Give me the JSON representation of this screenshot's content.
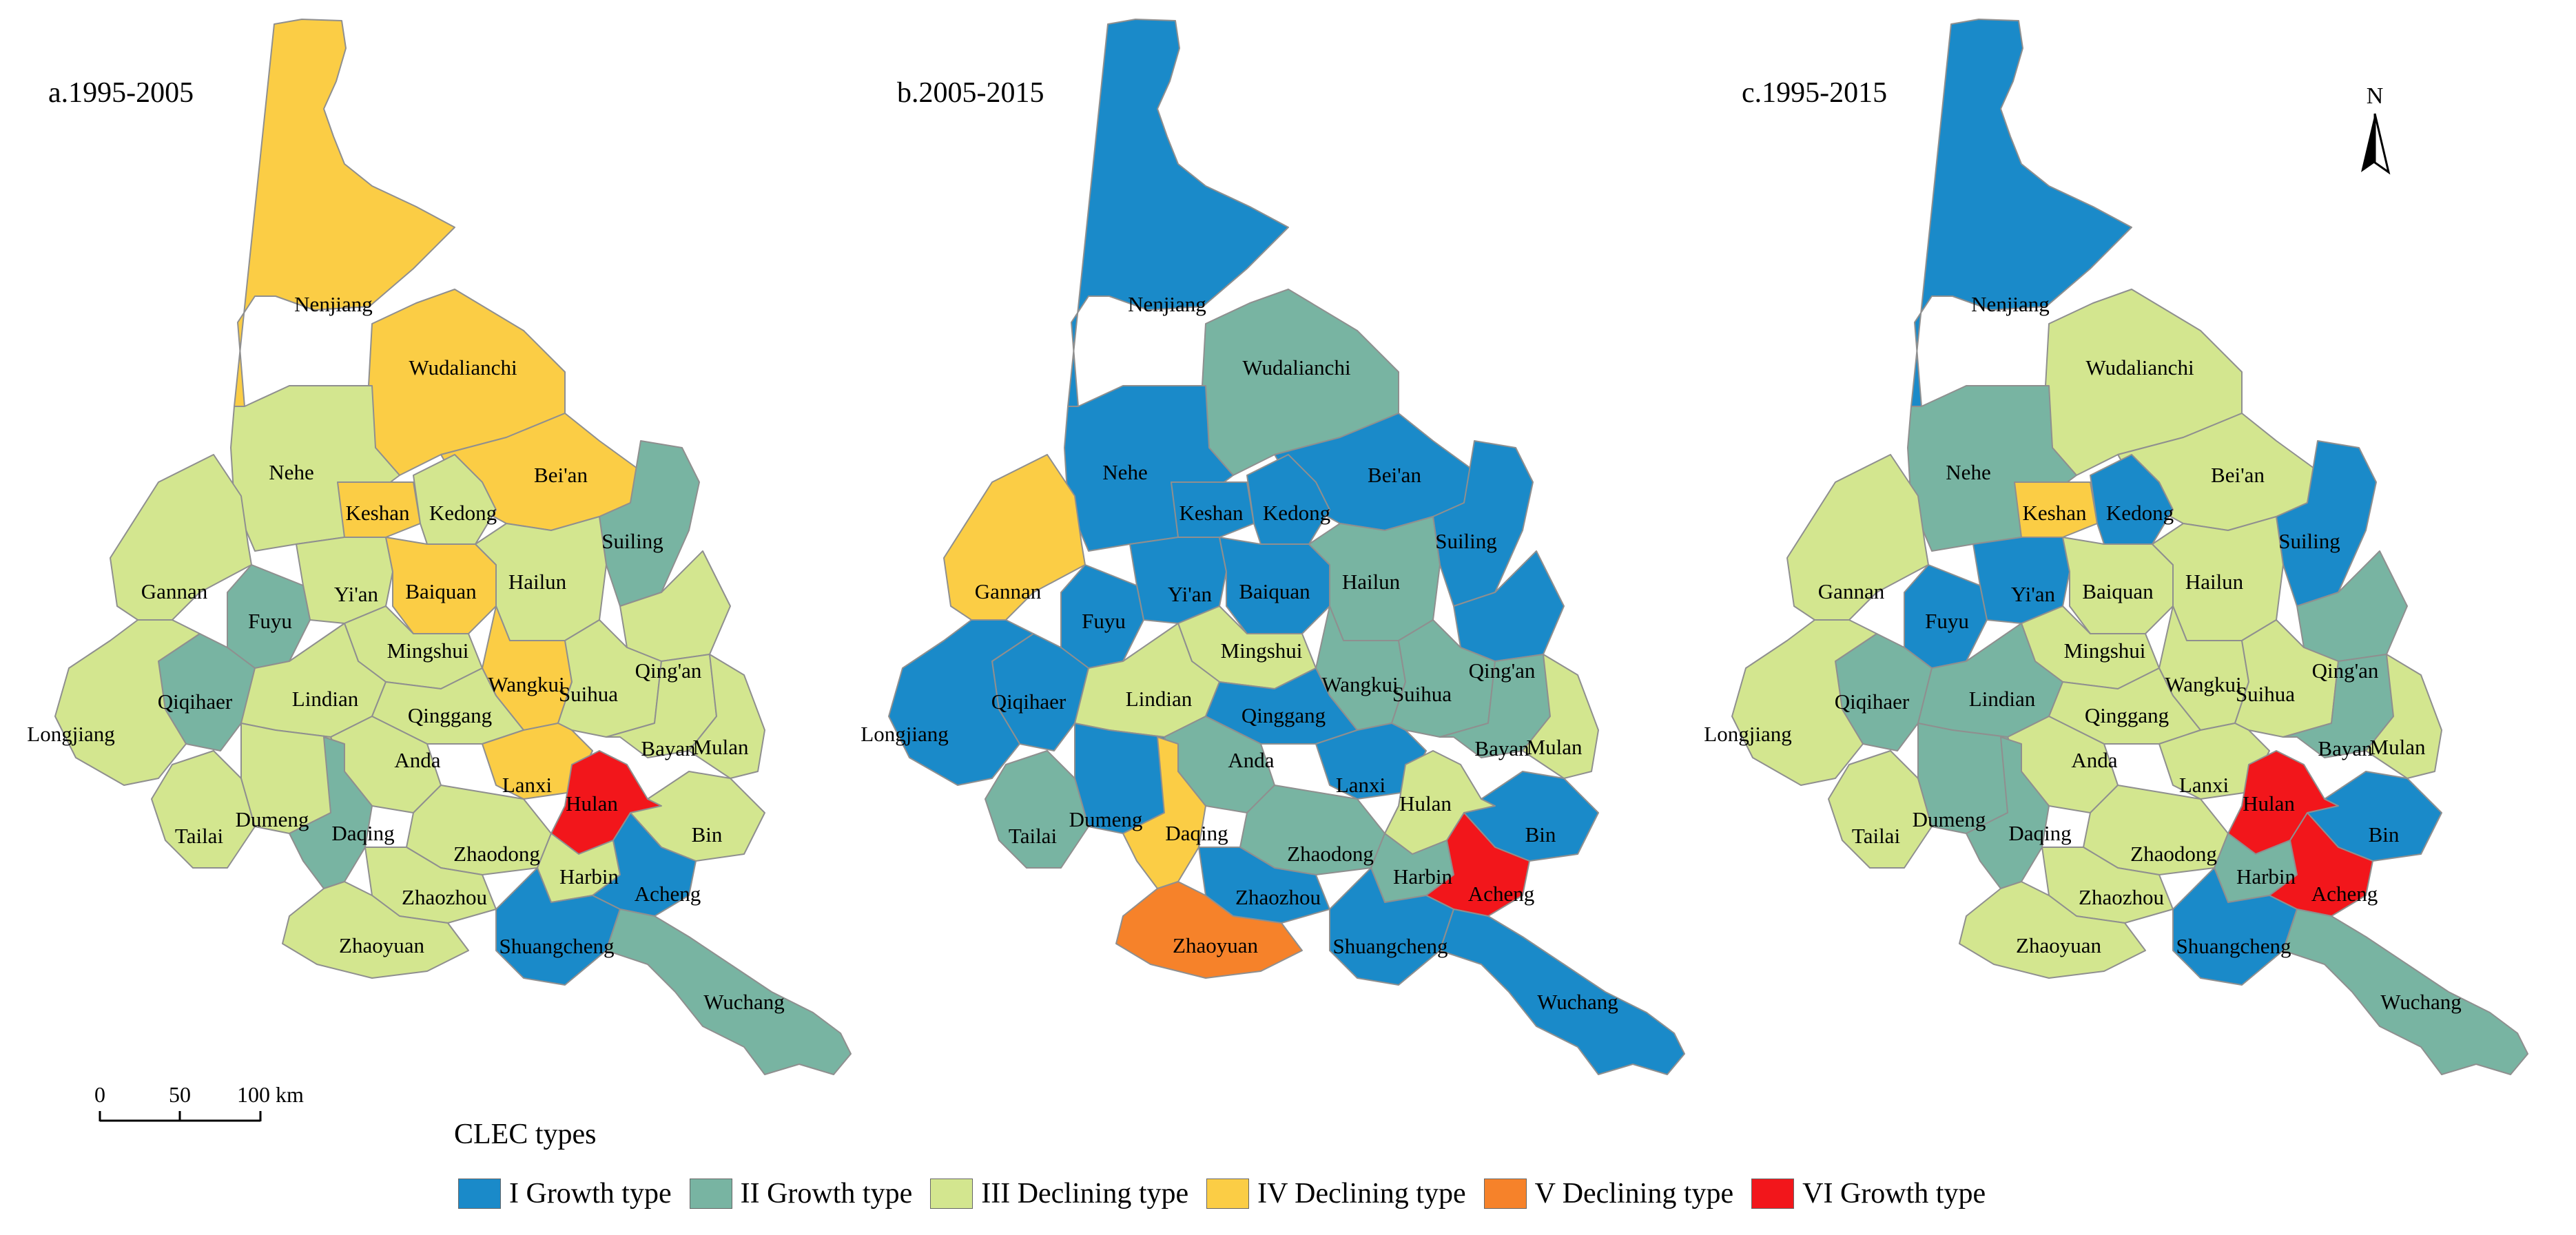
{
  "legend": {
    "title": "CLEC types",
    "items": [
      {
        "key": "I",
        "label": "I Growth type",
        "color": "#1a8ac9"
      },
      {
        "key": "II",
        "label": "II Growth type",
        "color": "#78b4a2"
      },
      {
        "key": "III",
        "label": "III Declining type",
        "color": "#d3e68f"
      },
      {
        "key": "IV",
        "label": "IV Declining type",
        "color": "#fbcd45"
      },
      {
        "key": "V",
        "label": "V Declining type",
        "color": "#f6822a"
      },
      {
        "key": "VI",
        "label": "VI Growth type",
        "color": "#f2161b"
      }
    ]
  },
  "north_arrow": {
    "label": "N"
  },
  "scale_bar": {
    "labels": [
      "0",
      "50",
      "100 km"
    ]
  },
  "counties": [
    "Nenjiang",
    "Wudalianchi",
    "Nehe",
    "Bei'an",
    "Keshan",
    "Kedong",
    "Suiling",
    "Gannan",
    "Yi'an",
    "Baiquan",
    "Hailun",
    "Fuyu",
    "Mingshui",
    "Qing'an",
    "Wangkui",
    "Suihua",
    "Qiqihaer",
    "Lindian",
    "Longjiang",
    "Qinggang",
    "Anda",
    "Bayan",
    "Mulan",
    "Lanxi",
    "Hulan",
    "Bin",
    "Tailai",
    "Dumeng",
    "Daqing",
    "Zhaodong",
    "Harbin",
    "Acheng",
    "Zhaozhou",
    "Shuangcheng",
    "Zhaoyuan",
    "Wuchang"
  ],
  "panels": [
    {
      "title": "a.1995-2005",
      "types": {
        "Nenjiang": "IV",
        "Wudalianchi": "IV",
        "Nehe": "III",
        "Bei'an": "IV",
        "Keshan": "IV",
        "Kedong": "III",
        "Suiling": "II",
        "Gannan": "III",
        "Yi'an": "III",
        "Baiquan": "IV",
        "Hailun": "III",
        "Fuyu": "II",
        "Mingshui": "III",
        "Qing'an": "III",
        "Wangkui": "IV",
        "Suihua": "III",
        "Qiqihaer": "II",
        "Lindian": "III",
        "Longjiang": "III",
        "Qinggang": "III",
        "Anda": "III",
        "Bayan": "III",
        "Mulan": "III",
        "Lanxi": "IV",
        "Hulan": "VI",
        "Bin": "III",
        "Tailai": "III",
        "Dumeng": "III",
        "Daqing": "II",
        "Zhaodong": "III",
        "Harbin": "III",
        "Acheng": "I",
        "Zhaozhou": "III",
        "Shuangcheng": "I",
        "Zhaoyuan": "III",
        "Wuchang": "II"
      }
    },
    {
      "title": "b.2005-2015",
      "types": {
        "Nenjiang": "I",
        "Wudalianchi": "II",
        "Nehe": "I",
        "Bei'an": "I",
        "Keshan": "I",
        "Kedong": "I",
        "Suiling": "I",
        "Gannan": "IV",
        "Yi'an": "I",
        "Baiquan": "I",
        "Hailun": "II",
        "Fuyu": "I",
        "Mingshui": "III",
        "Qing'an": "I",
        "Wangkui": "II",
        "Suihua": "II",
        "Qiqihaer": "I",
        "Lindian": "III",
        "Longjiang": "I",
        "Qinggang": "I",
        "Anda": "II",
        "Bayan": "II",
        "Mulan": "III",
        "Lanxi": "I",
        "Hulan": "III",
        "Bin": "I",
        "Tailai": "II",
        "Dumeng": "I",
        "Daqing": "IV",
        "Zhaodong": "II",
        "Harbin": "II",
        "Acheng": "VI",
        "Zhaozhou": "I",
        "Shuangcheng": "I",
        "Zhaoyuan": "V",
        "Wuchang": "I"
      }
    },
    {
      "title": "c.1995-2015",
      "types": {
        "Nenjiang": "I",
        "Wudalianchi": "III",
        "Nehe": "II",
        "Bei'an": "III",
        "Keshan": "IV",
        "Kedong": "I",
        "Suiling": "I",
        "Gannan": "III",
        "Yi'an": "I",
        "Baiquan": "III",
        "Hailun": "III",
        "Fuyu": "I",
        "Mingshui": "III",
        "Qing'an": "II",
        "Wangkui": "III",
        "Suihua": "III",
        "Qiqihaer": "II",
        "Lindian": "II",
        "Longjiang": "III",
        "Qinggang": "III",
        "Anda": "III",
        "Bayan": "II",
        "Mulan": "III",
        "Lanxi": "III",
        "Hulan": "VI",
        "Bin": "I",
        "Tailai": "III",
        "Dumeng": "II",
        "Daqing": "II",
        "Zhaodong": "III",
        "Harbin": "II",
        "Acheng": "VI",
        "Zhaozhou": "III",
        "Shuangcheng": "I",
        "Zhaoyuan": "III",
        "Wuchang": "II"
      }
    }
  ]
}
